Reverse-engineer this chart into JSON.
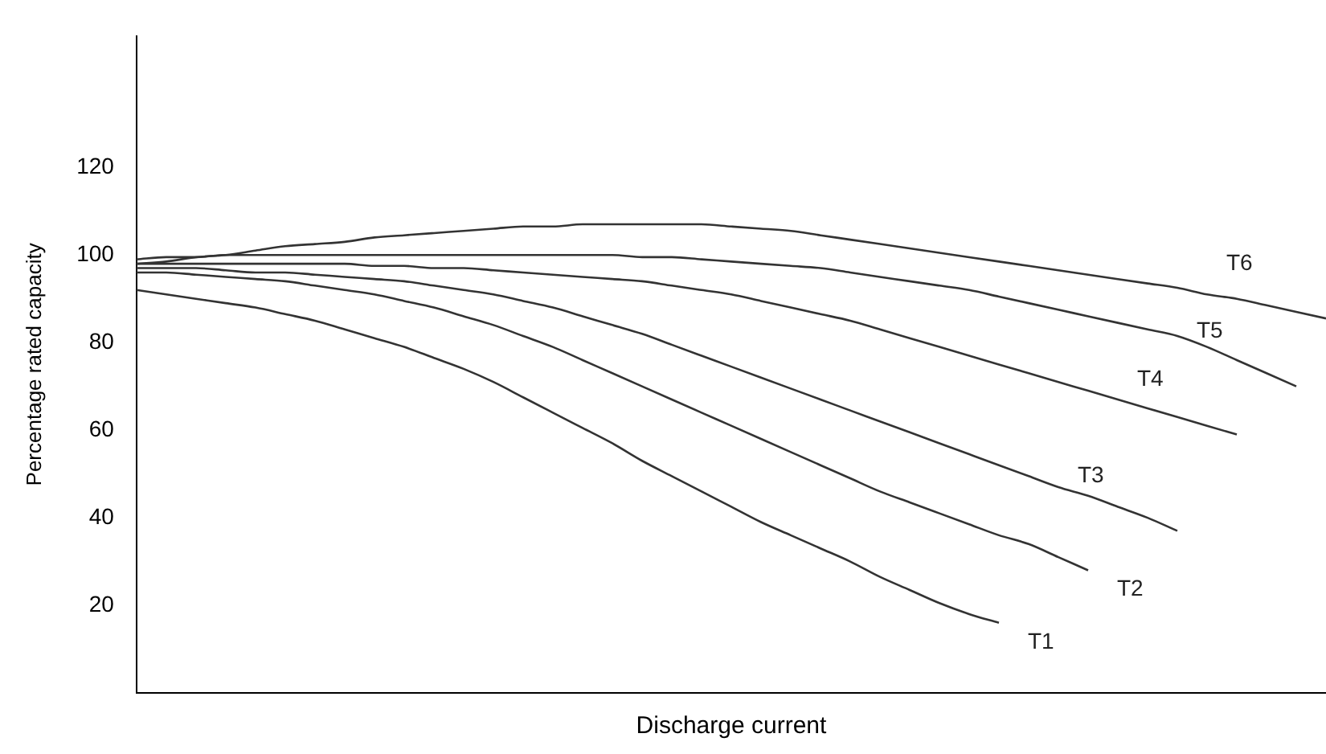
{
  "chart_data": {
    "type": "line",
    "xlabel": "Discharge current",
    "ylabel": "Percentage rated capacity",
    "categories": [
      null,
      null,
      null,
      null,
      null,
      null,
      null,
      null,
      null,
      null,
      null,
      null,
      null,
      null,
      null,
      null,
      null,
      null,
      null,
      null,
      null,
      null,
      null,
      null,
      null,
      null,
      null,
      null,
      null,
      null,
      null,
      null,
      null,
      null,
      null,
      null,
      null,
      null,
      null,
      null,
      null
    ],
    "ylim": [
      0,
      150
    ],
    "yticks": [
      20,
      40,
      60,
      80,
      100,
      120
    ],
    "grid": false,
    "legend": false,
    "marker": "none",
    "line_style": "solid",
    "tick_labels": "y",
    "series": [
      {
        "name": "T1",
        "color": "#333333",
        "values": [
          92,
          91,
          90,
          89,
          88,
          86.5,
          85,
          83,
          81,
          79,
          76.5,
          74,
          71,
          67.5,
          64,
          60.5,
          57,
          53,
          49.5,
          46,
          42.5,
          39,
          36,
          33,
          30,
          26.5,
          23.5,
          20.5,
          18,
          16,
          null,
          null,
          null,
          null,
          null,
          null,
          null,
          null,
          null,
          null,
          null
        ]
      },
      {
        "name": "T2",
        "color": "#333333",
        "values": [
          96,
          96,
          95.5,
          95,
          94.5,
          94,
          93,
          92,
          91,
          89.5,
          88,
          86,
          84,
          81.5,
          79,
          76,
          73,
          70,
          67,
          64,
          61,
          58,
          55,
          52,
          49,
          46,
          43.5,
          41,
          38.5,
          36,
          34,
          31,
          28,
          null,
          null,
          null,
          null,
          null,
          null,
          null,
          null
        ]
      },
      {
        "name": "T3",
        "color": "#333333",
        "values": [
          97,
          97,
          97,
          96.5,
          96,
          96,
          95.5,
          95,
          94.5,
          94,
          93,
          92,
          91,
          89.5,
          88,
          86,
          84,
          82,
          79.5,
          77,
          74.5,
          72,
          69.5,
          67,
          64.5,
          62,
          59.5,
          57,
          54.5,
          52,
          49.5,
          47,
          45,
          42.5,
          40,
          37,
          null,
          null,
          null,
          null,
          null
        ]
      },
      {
        "name": "T4",
        "color": "#333333",
        "values": [
          98,
          98,
          98,
          98,
          98,
          98,
          98,
          98,
          97.5,
          97.5,
          97,
          97,
          96.5,
          96,
          95.5,
          95,
          94.5,
          94,
          93,
          92,
          91,
          89.5,
          88,
          86.5,
          85,
          83,
          81,
          79,
          77,
          75,
          73,
          71,
          69,
          67,
          65,
          63,
          61,
          59,
          null,
          null,
          null
        ]
      },
      {
        "name": "T5",
        "color": "#333333",
        "values": [
          99,
          99.5,
          99.5,
          100,
          100,
          100,
          100,
          100,
          100,
          100,
          100,
          100,
          100,
          100,
          100,
          100,
          100,
          99.5,
          99.5,
          99,
          98.5,
          98,
          97.5,
          97,
          96,
          95,
          94,
          93,
          92,
          90.5,
          89,
          87.5,
          86,
          84.5,
          83,
          81.5,
          79,
          76,
          73,
          70,
          null
        ]
      },
      {
        "name": "T6",
        "color": "#333333",
        "values": [
          98,
          98.5,
          99.5,
          100,
          101,
          102,
          102.5,
          103,
          104,
          104.5,
          105,
          105.5,
          106,
          106.5,
          106.5,
          107,
          107,
          107,
          107,
          107,
          106.5,
          106,
          105.5,
          104.5,
          103.5,
          102.5,
          101.5,
          100.5,
          99.5,
          98.5,
          97.5,
          96.5,
          95.5,
          94.5,
          93.5,
          92.5,
          91,
          90,
          88.5,
          87,
          85.5
        ]
      }
    ]
  }
}
